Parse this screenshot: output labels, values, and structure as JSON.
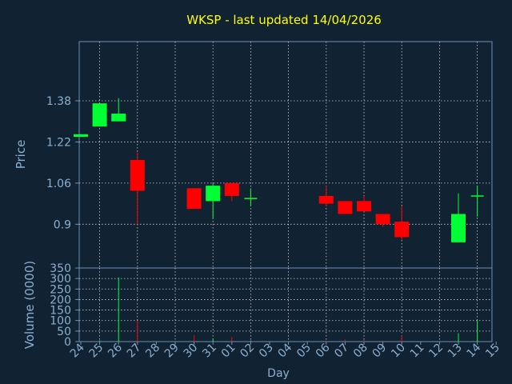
{
  "chart_data": {
    "type": "candlestick",
    "title": "WKSP - last updated 14/04/2026",
    "xlabel": "Day",
    "colors": {
      "background": "#112233",
      "title": "#ffff00",
      "text": "#8ab0d0",
      "axis": "#7090b0",
      "grid": "#d0d0d0",
      "up": "#00ff33",
      "down": "#ff0000"
    },
    "x_ticks": [
      "24",
      "25",
      "26",
      "27",
      "28",
      "29",
      "30",
      "31",
      "01",
      "02",
      "03",
      "04",
      "05",
      "06",
      "07",
      "08",
      "09",
      "10",
      "11",
      "12",
      "13",
      "14",
      "15"
    ],
    "price_panel": {
      "ylabel": "Price",
      "ylim": [
        0.73,
        1.61
      ],
      "yticks": [
        0.9,
        1.06,
        1.22,
        1.38
      ],
      "ytick_labels": [
        "0.9",
        "1.06",
        "1.22",
        "1.38"
      ]
    },
    "volume_panel": {
      "ylabel": "Volume (0000)",
      "ylim": [
        0,
        350
      ],
      "yticks": [
        0,
        50,
        100,
        150,
        200,
        250,
        300,
        350
      ],
      "ytick_labels": [
        "0",
        "50",
        "100",
        "150",
        "200",
        "250",
        "300",
        "350"
      ]
    },
    "candles": [
      {
        "day": "24",
        "open": 1.24,
        "high": 1.25,
        "low": 1.24,
        "close": 1.25,
        "volume": 0
      },
      {
        "day": "25",
        "open": 1.28,
        "high": 1.37,
        "low": 1.28,
        "close": 1.37,
        "volume": 5
      },
      {
        "day": "26",
        "open": 1.3,
        "high": 1.39,
        "low": 1.3,
        "close": 1.33,
        "volume": 305
      },
      {
        "day": "27",
        "open": 1.15,
        "high": 1.18,
        "low": 0.9,
        "close": 1.03,
        "volume": 100
      },
      {
        "day": "30",
        "open": 1.04,
        "high": 1.04,
        "low": 0.96,
        "close": 0.96,
        "volume": 30
      },
      {
        "day": "31",
        "open": 0.99,
        "high": 1.06,
        "low": 0.92,
        "close": 1.05,
        "volume": 15
      },
      {
        "day": "01",
        "open": 1.06,
        "high": 1.06,
        "low": 0.99,
        "close": 1.01,
        "volume": 20
      },
      {
        "day": "02",
        "open": 1.0,
        "high": 1.04,
        "low": 0.97,
        "close": 1.0,
        "volume": 5
      },
      {
        "day": "06",
        "open": 1.01,
        "high": 1.05,
        "low": 0.97,
        "close": 0.98,
        "volume": 5
      },
      {
        "day": "07",
        "open": 0.99,
        "high": 0.99,
        "low": 0.94,
        "close": 0.94,
        "volume": 10
      },
      {
        "day": "08",
        "open": 0.99,
        "high": 1.01,
        "low": 0.95,
        "close": 0.95,
        "volume": 8
      },
      {
        "day": "09",
        "open": 0.94,
        "high": 0.94,
        "low": 0.89,
        "close": 0.9,
        "volume": 5
      },
      {
        "day": "10",
        "open": 0.91,
        "high": 0.97,
        "low": 0.84,
        "close": 0.85,
        "volume": 30
      },
      {
        "day": "13",
        "open": 0.83,
        "high": 1.02,
        "low": 0.83,
        "close": 0.94,
        "volume": 40
      },
      {
        "day": "14",
        "open": 1.01,
        "high": 1.05,
        "low": 0.93,
        "close": 1.01,
        "volume": 100
      }
    ]
  }
}
